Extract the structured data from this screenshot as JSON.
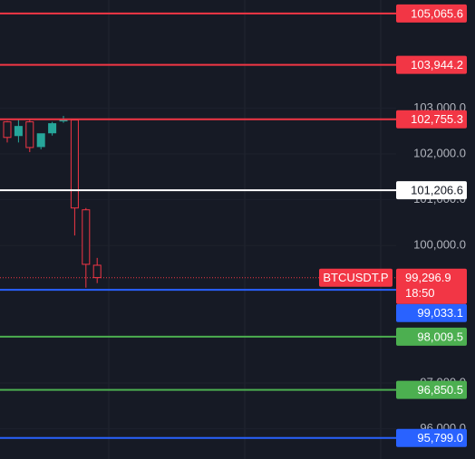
{
  "chart_data": {
    "type": "candlestick",
    "ylim": [
      95340,
      105360
    ],
    "yticks": [
      {
        "value": 96000,
        "label": "96,000.0"
      },
      {
        "value": 97000,
        "label": "97,000.0"
      },
      {
        "value": 100000,
        "label": "100,000.0"
      },
      {
        "value": 101000,
        "label": "101,000.0"
      },
      {
        "value": 102000,
        "label": "102,000.0"
      },
      {
        "value": 103000,
        "label": "103,000.0"
      }
    ],
    "up_color": "#26a69a",
    "down_color": "#f23645",
    "candles": {
      "open": [
        102700,
        102400,
        102700,
        102160,
        102460,
        102720,
        102740,
        100780,
        99570
      ],
      "high": [
        102720,
        102740,
        102755,
        102220,
        102700,
        102830,
        102755,
        100820,
        99730
      ],
      "low": [
        102250,
        102250,
        102040,
        102100,
        102400,
        102680,
        100220,
        99080,
        99180
      ],
      "close": [
        102360,
        102600,
        102140,
        102440,
        102660,
        102760,
        100820,
        99590,
        99300
      ]
    },
    "levels": {
      "values": [
        105065.6,
        103944.2,
        102755.3,
        101206.6,
        99033.1,
        98009.5,
        96850.5,
        95799.0
      ],
      "value_labels": [
        "105,065.6",
        "103,944.2",
        "102,755.3",
        "101,206.6",
        "99,033.1",
        "98,009.5",
        "96,850.5",
        "95,799.0"
      ],
      "colors": [
        "#f23645",
        "#f23645",
        "#f23645",
        "#ffffff",
        "#2962ff",
        "#4caf50",
        "#4caf50",
        "#2962ff"
      ]
    },
    "last_price": {
      "symbol": "BTCUSDT.P",
      "value": 99296.9,
      "value_label": "99,296.9",
      "countdown": "18:50",
      "color": "#f23645"
    }
  }
}
